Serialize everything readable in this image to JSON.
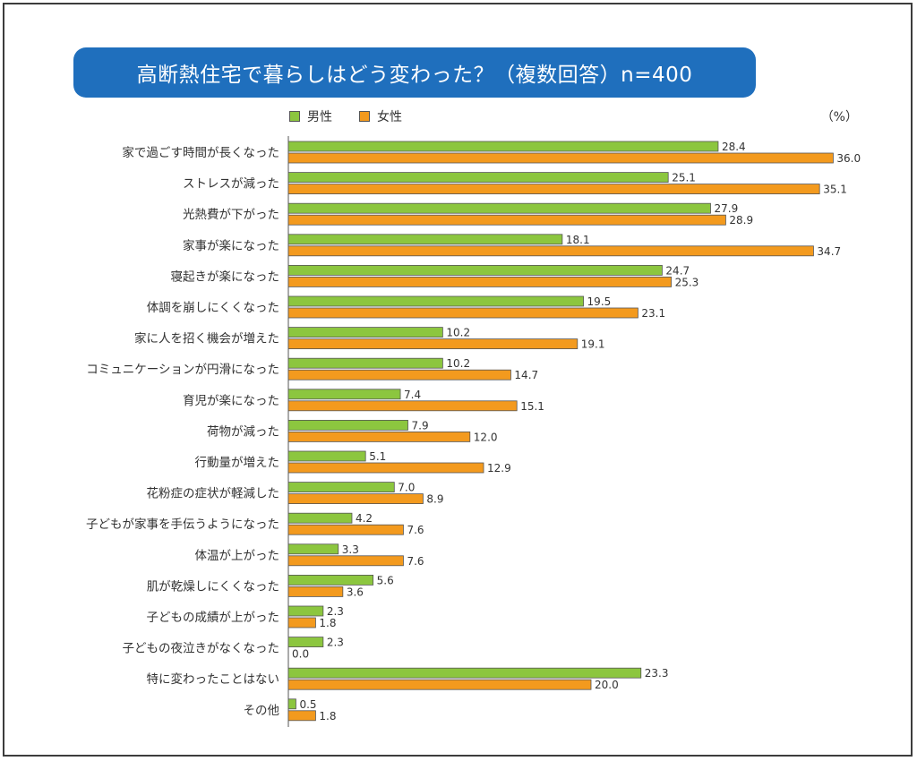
{
  "title": "高断熱住宅で暮らしはどう変わった？（複数回答）n=400",
  "unit_label": "（%）",
  "colors": {
    "male": "#8cc63f",
    "female": "#f39a1e",
    "banner": "#1f6fbd"
  },
  "chart_data": {
    "type": "bar",
    "orientation": "horizontal",
    "categories": [
      "家で過ごす時間が長くなった",
      "ストレスが減った",
      "光熱費が下がった",
      "家事が楽になった",
      "寝起きが楽になった",
      "体調を崩しにくくなった",
      "家に人を招く機会が増えた",
      "コミュニケーションが円滑になった",
      "育児が楽になった",
      "荷物が減った",
      "行動量が増えた",
      "花粉症の症状が軽減した",
      "子どもが家事を手伝うようになった",
      "体温が上がった",
      "肌が乾燥しにくくなった",
      "子どもの成績が上がった",
      "子どもの夜泣きがなくなった",
      "特に変わったことはない",
      "その他"
    ],
    "series": [
      {
        "name": "男性",
        "values": [
          28.4,
          25.1,
          27.9,
          18.1,
          24.7,
          19.5,
          10.2,
          10.2,
          7.4,
          7.9,
          5.1,
          7.0,
          4.2,
          3.3,
          5.6,
          2.3,
          2.3,
          23.3,
          0.5
        ]
      },
      {
        "name": "女性",
        "values": [
          36.0,
          35.1,
          28.9,
          34.7,
          25.3,
          23.1,
          19.1,
          14.7,
          15.1,
          12.0,
          12.9,
          8.9,
          7.6,
          7.6,
          3.6,
          1.8,
          0.0,
          20.0,
          1.8
        ]
      }
    ],
    "xlim": [
      0,
      36
    ],
    "legend_position": "top-left",
    "grid": false
  }
}
